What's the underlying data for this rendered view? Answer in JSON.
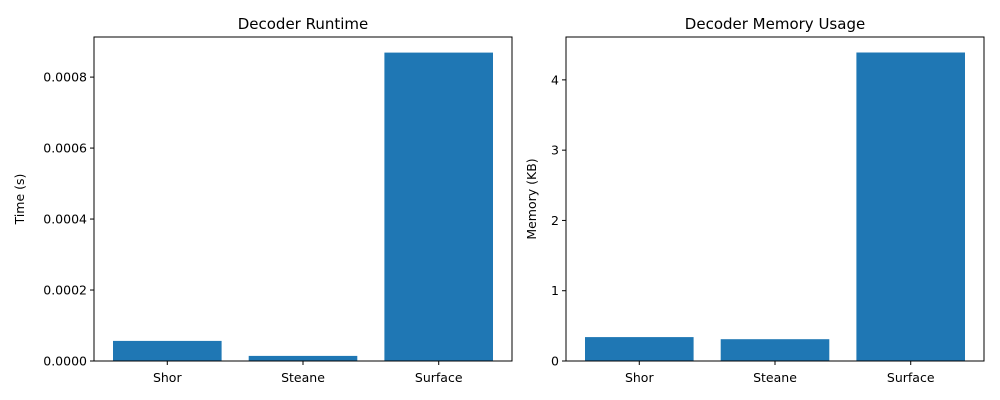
{
  "chart_data": [
    {
      "type": "bar",
      "title": "Decoder Runtime",
      "xlabel": "",
      "ylabel": "Time (s)",
      "categories": [
        "Shor",
        "Steane",
        "Surface"
      ],
      "values": [
        5.65e-05,
        1.45e-05,
        0.000869
      ],
      "ylim": [
        0,
        0.000913
      ],
      "yticks": [
        0,
        0.0002,
        0.0004,
        0.0006,
        0.0008
      ],
      "ytick_labels": [
        "0.0000",
        "0.0002",
        "0.0004",
        "0.0006",
        "0.0008"
      ],
      "grid": false,
      "color": "#1f77b4"
    },
    {
      "type": "bar",
      "title": "Decoder Memory Usage",
      "xlabel": "",
      "ylabel": "Memory (KB)",
      "categories": [
        "Shor",
        "Steane",
        "Surface"
      ],
      "values": [
        0.34,
        0.31,
        4.39
      ],
      "ylim": [
        0,
        4.61
      ],
      "yticks": [
        0,
        1,
        2,
        3,
        4
      ],
      "ytick_labels": [
        "0",
        "1",
        "2",
        "3",
        "4"
      ],
      "grid": false,
      "color": "#1f77b4"
    }
  ]
}
